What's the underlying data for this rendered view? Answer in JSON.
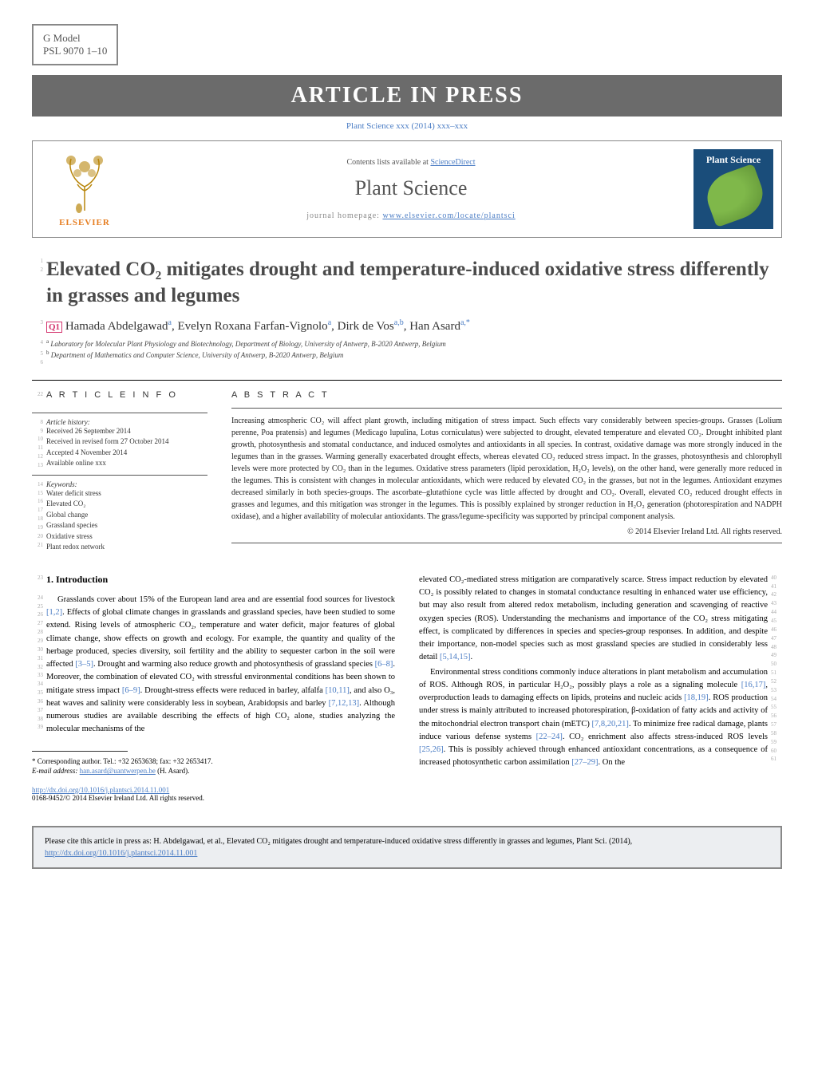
{
  "header": {
    "gmodel": "G Model",
    "psl": "PSL 9070 1–10",
    "banner": "ARTICLE IN PRESS",
    "subbanner": "Plant Science xxx (2014) xxx–xxx"
  },
  "journal": {
    "contents_pre": "Contents lists available at ",
    "contents_link": "ScienceDirect",
    "name": "Plant Science",
    "homepage_pre": "journal homepage: ",
    "homepage_link": "www.elsevier.com/locate/plantsci",
    "elsevier": "ELSEVIER",
    "cover_text": "Plant Science"
  },
  "article": {
    "title": "Elevated CO₂ mitigates drought and temperature-induced oxidative stress differently in grasses and legumes",
    "q1": "Q1",
    "authors_html": "Hamada Abdelgawad",
    "auth_a": "a",
    "auth_sep1": ", Evelyn Roxana Farfan-Vignolo",
    "auth_sep2": ", Dirk de Vos",
    "auth_ab": "a,b",
    "auth_sep3": ", Han Asard",
    "auth_star": "a,*",
    "affil_a": "Laboratory for Molecular Plant Physiology and Biotechnology, Department of Biology, University of Antwerp, B-2020 Antwerp, Belgium",
    "affil_b": "Department of Mathematics and Computer Science, University of Antwerp, B-2020 Antwerp, Belgium"
  },
  "info": {
    "heading": "A R T I C L E   I N F O",
    "history_label": "Article history:",
    "received": "Received 26 September 2014",
    "revised": "Received in revised form 27 October 2014",
    "accepted": "Accepted 4 November 2014",
    "online": "Available online xxx",
    "keywords_label": "Keywords:",
    "kw": [
      "Water deficit stress",
      "Elevated CO₂",
      "Global change",
      "Grassland species",
      "Oxidative stress",
      "Plant redox network"
    ]
  },
  "abstract": {
    "heading": "A B S T R A C T",
    "text": "Increasing atmospheric CO₂ will affect plant growth, including mitigation of stress impact. Such effects vary considerably between species-groups. Grasses (Lolium perenne, Poa pratensis) and legumes (Medicago lupulina, Lotus corniculatus) were subjected to drought, elevated temperature and elevated CO₂. Drought inhibited plant growth, photosynthesis and stomatal conductance, and induced osmolytes and antioxidants in all species. In contrast, oxidative damage was more strongly induced in the legumes than in the grasses. Warming generally exacerbated drought effects, whereas elevated CO₂ reduced stress impact. In the grasses, photosynthesis and chlorophyll levels were more protected by CO₂ than in the legumes. Oxidative stress parameters (lipid peroxidation, H₂O₂ levels), on the other hand, were generally more reduced in the legumes. This is consistent with changes in molecular antioxidants, which were reduced by elevated CO₂ in the grasses, but not in the legumes. Antioxidant enzymes decreased similarly in both species-groups. The ascorbate–glutathione cycle was little affected by drought and CO₂. Overall, elevated CO₂ reduced drought effects in grasses and legumes, and this mitigation was stronger in the legumes. This is possibly explained by stronger reduction in H₂O₂ generation (photorespiration and NADPH oxidase), and a higher availability of molecular antioxidants. The grass/legume-specificity was supported by principal component analysis.",
    "copyright": "© 2014 Elsevier Ireland Ltd. All rights reserved."
  },
  "body": {
    "section1": "1. Introduction",
    "col1_p1": "Grasslands cover about 15% of the European land area and are essential food sources for livestock [1,2]. Effects of global climate changes in grasslands and grassland species, have been studied to some extend. Rising levels of atmospheric CO₂, temperature and water deficit, major features of global climate change, show effects on growth and ecology. For example, the quantity and quality of the herbage produced, species diversity, soil fertility and the ability to sequester carbon in the soil were affected [3–5]. Drought and warming also reduce growth and photosynthesis of grassland species [6–8]. Moreover, the combination of elevated CO₂ with stressful environmental conditions has been shown to mitigate stress impact [6–9]. Drought-stress effects were reduced in barley, alfalfa [10,11], and also O₃, heat waves and salinity were considerably less in soybean, Arabidopsis and barley [7,12,13]. Although numerous studies are available describing the effects of high CO₂ alone, studies analyzing the molecular mechanisms of the",
    "col2_p1": "elevated CO₂-mediated stress mitigation are comparatively scarce. Stress impact reduction by elevated CO₂ is possibly related to changes in stomatal conductance resulting in enhanced water use efficiency, but may also result from altered redox metabolism, including generation and scavenging of reactive oxygen species (ROS). Understanding the mechanisms and importance of the CO₂ stress mitigating effect, is complicated by differences in species and species-group responses. In addition, and despite their importance, non-model species such as most grassland species are studied in considerably less detail [5,14,15].",
    "col2_p2": "Environmental stress conditions commonly induce alterations in plant metabolism and accumulation of ROS. Although ROS, in particular H₂O₂, possibly plays a role as a signaling molecule [16,17], overproduction leads to damaging effects on lipids, proteins and nucleic acids [18,19]. ROS production under stress is mainly attributed to increased photorespiration, β-oxidation of fatty acids and activity of the mitochondrial electron transport chain (mETC) [7,8,20,21]. To minimize free radical damage, plants induce various defense systems [22–24]. CO₂ enrichment also affects stress-induced ROS levels [25,26]. This is possibly achieved through enhanced antioxidant concentrations, as a consequence of increased photosynthetic carbon assimilation [27–29]. On the"
  },
  "footnote": {
    "corr": "* Corresponding author. Tel.: +32 2653638; fax: +32 2653417.",
    "email_label": "E-mail address: ",
    "email": "han.asard@uantwerpen.be",
    "email_who": " (H. Asard)."
  },
  "doi": {
    "link": "http://dx.doi.org/10.1016/j.plantsci.2014.11.001",
    "issn": "0168-9452/© 2014 Elsevier Ireland Ltd. All rights reserved."
  },
  "citebox": {
    "text_pre": "Please cite this article in press as: H. Abdelgawad, et al., Elevated CO₂ mitigates drought and temperature-induced oxidative stress differently in grasses and legumes, Plant Sci. (2014), ",
    "link": "http://dx.doi.org/10.1016/j.plantsci.2014.11.001"
  },
  "lines": {
    "title1": "1",
    "title2": "2",
    "auth": "3",
    "aff1": "4",
    "aff2": "5",
    "blank6": "6",
    "info_h": "22",
    "hist8": "8",
    "hist9": "9",
    "hist10": "10",
    "hist11": "11",
    "hist12": "12",
    "hist13": "13",
    "hist14": "14",
    "kw15": "15",
    "kw16": "16",
    "kw17": "17",
    "kw18": "18",
    "kw19": "19",
    "kw20": "20",
    "kw21": "21",
    "intro": "23",
    "b24": "24",
    "b25": "25",
    "b26": "26",
    "b27": "27",
    "b28": "28",
    "b29": "29",
    "b30": "30",
    "b31": "31",
    "b32": "32",
    "b33": "33",
    "b34": "34",
    "b35": "35",
    "b36": "36",
    "b37": "37",
    "b38": "38",
    "b39": "39",
    "r40": "40",
    "r41": "41",
    "r42": "42",
    "r43": "43",
    "r44": "44",
    "r45": "45",
    "r46": "46",
    "r47": "47",
    "r48": "48",
    "r49": "49",
    "r50": "50",
    "r51": "51",
    "r52": "52",
    "r53": "53",
    "r54": "54",
    "r55": "55",
    "r56": "56",
    "r57": "57",
    "r58": "58",
    "r59": "59",
    "r60": "60",
    "r61": "61"
  },
  "colors": {
    "link": "#4a7cc4",
    "banner_bg": "#6b6b6b",
    "q1": "#d4356f",
    "elsevier": "#e67e22",
    "cover_bg": "#1a4d7a"
  }
}
